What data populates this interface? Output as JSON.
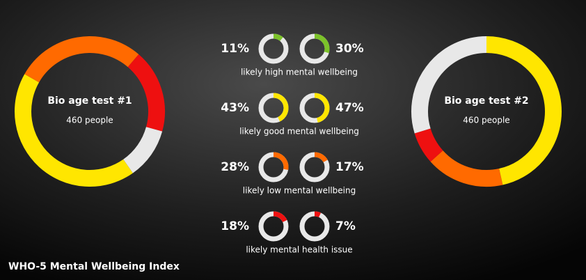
{
  "title": "WHO-5 Mental Wellbeing Index",
  "accent_colors": [
    "#7cc22a",
    "#ffe600",
    "#ff6a00",
    "#ee1010"
  ],
  "chart_data": [
    {
      "type": "donut",
      "title": "Bio age test #1",
      "subtitle": "460 people",
      "categories": [
        "likely high mental wellbeing",
        "likely good mental wellbeing",
        "likely low mental wellbeing",
        "likely mental health issue"
      ],
      "values": [
        11,
        43,
        28,
        18
      ],
      "value_labels": [
        "11%",
        "43%",
        "28%",
        "18%"
      ],
      "colors": [
        "#e8e8e8",
        "#ffe600",
        "#ff6a00",
        "#ee1010"
      ]
    },
    {
      "type": "donut",
      "title": "Bio age test #2",
      "subtitle": "460 people",
      "values": [
        30,
        47,
        17,
        7
      ],
      "value_labels": [
        "30%",
        "47%",
        "17%",
        "7%"
      ],
      "colors": [
        "#e8e8e8",
        "#ffe600",
        "#ff6a00",
        "#ee1010"
      ]
    }
  ]
}
